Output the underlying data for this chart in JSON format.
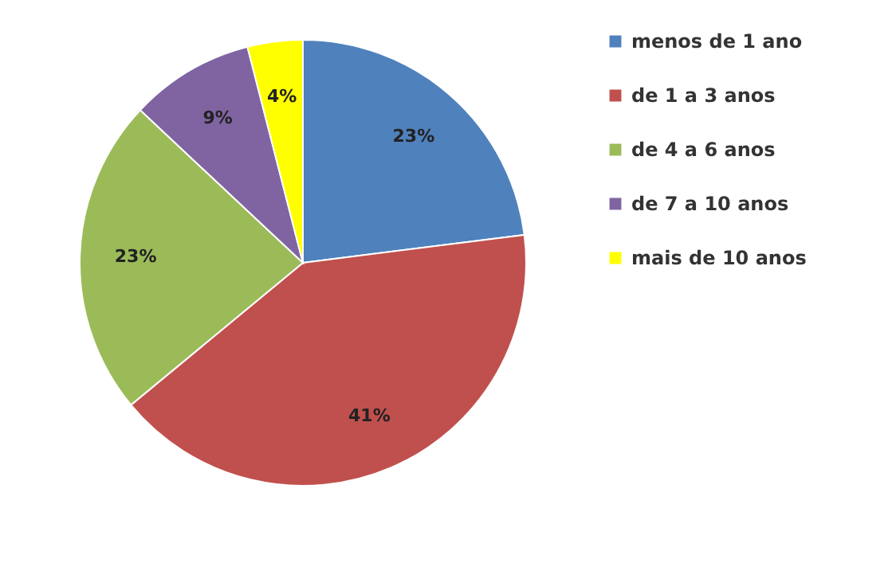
{
  "chart_data": {
    "type": "pie",
    "categories": [
      "menos de 1 ano",
      "de 1 a 3 anos",
      "de 4 a 6 anos",
      "de 7 a 10 anos",
      "mais de 10 anos"
    ],
    "values": [
      23,
      41,
      23,
      9,
      4
    ],
    "colors": [
      "#4f81bd",
      "#c0504d",
      "#9bbb59",
      "#8064a2",
      "#ffff00"
    ],
    "value_labels": [
      "23%",
      "41%",
      "23%",
      "9%",
      "4%"
    ],
    "legend": "right"
  }
}
